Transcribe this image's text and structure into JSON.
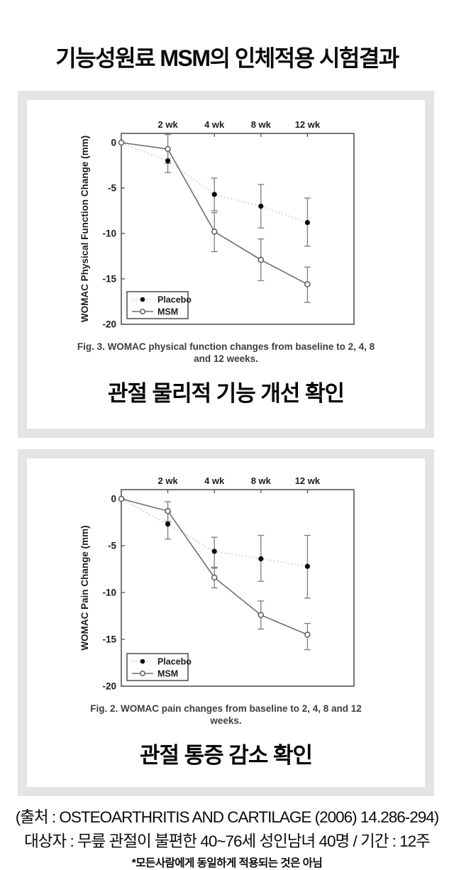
{
  "page": {
    "title": "기능성원료 MSM의 인체적용 시험결과"
  },
  "figures": [
    {
      "id": "physical-function",
      "caption_line1": "Fig. 3. WOMAC physical function changes from baseline to 2, 4, 8",
      "caption_line2": "and 12 weeks.",
      "subtitle": "관절 물리적 기능 개선 확인"
    },
    {
      "id": "pain",
      "caption_line1": "Fig. 2. WOMAC pain changes from baseline to 2, 4, 8 and 12",
      "caption_line2": "weeks.",
      "subtitle": "관절 통증 감소 확인"
    }
  ],
  "footer": {
    "source": "(출처 : OSTEOARTHRITIS AND CARTILAGE (2006) 14.286-294)",
    "subjects": "대상자 : 무릎 관절이 불편한 40~76세 성인남녀 40명 / 기간 : 12주",
    "disclaimer": "*모든사람에게 동일하게 적용되는 것은 아님"
  },
  "chart_data": [
    {
      "type": "line",
      "title": "WOMAC physical function change from baseline",
      "ylabel": "WOMAC Physical Function Change (mm)",
      "xlabel": "",
      "x_weeks": [
        0,
        2,
        4,
        8,
        12
      ],
      "x_tick_labels": [
        "2 wk",
        "4 wk",
        "8 wk",
        "12 wk"
      ],
      "y_ticks": [
        0,
        -5,
        -10,
        -15,
        -20
      ],
      "ylim": [
        1,
        -20
      ],
      "grid": false,
      "legend_position": "lower-left",
      "series": [
        {
          "name": "Placebo",
          "marker": "filled-circle",
          "line_style": "dotted",
          "values": [
            0,
            -2.0,
            -5.7,
            -7.0,
            -8.8
          ],
          "err_hi": [
            null,
            -0.7,
            -3.9,
            -4.6,
            -6.1
          ],
          "err_lo": [
            null,
            -3.3,
            -7.5,
            -9.4,
            -11.4
          ]
        },
        {
          "name": "MSM",
          "marker": "open-circle",
          "line_style": "solid",
          "values": [
            0,
            -0.7,
            -9.8,
            -12.9,
            -15.6
          ],
          "err_hi": [
            null,
            0.9,
            -7.7,
            -10.6,
            -13.7
          ],
          "err_lo": [
            null,
            -2.3,
            -12.0,
            -15.2,
            -17.6
          ]
        }
      ]
    },
    {
      "type": "line",
      "title": "WOMAC pain change from baseline",
      "ylabel": "WOMAC Pain Change (mm)",
      "xlabel": "",
      "x_weeks": [
        0,
        2,
        4,
        8,
        12
      ],
      "x_tick_labels": [
        "2 wk",
        "4 wk",
        "8 wk",
        "12 wk"
      ],
      "y_ticks": [
        0,
        -5,
        -10,
        -15,
        -20
      ],
      "ylim": [
        1,
        -20
      ],
      "grid": false,
      "legend_position": "lower-left",
      "series": [
        {
          "name": "Placebo",
          "marker": "filled-circle",
          "line_style": "dotted",
          "values": [
            0,
            -2.7,
            -5.6,
            -6.4,
            -7.2
          ],
          "err_hi": [
            null,
            -1.4,
            -4.1,
            -3.9,
            -3.9
          ],
          "err_lo": [
            null,
            -4.3,
            -7.4,
            -8.8,
            -10.6
          ]
        },
        {
          "name": "MSM",
          "marker": "open-circle",
          "line_style": "solid",
          "values": [
            0,
            -1.3,
            -8.4,
            -12.4,
            -14.5
          ],
          "err_hi": [
            null,
            -0.3,
            -7.3,
            -10.9,
            -13.3
          ],
          "err_lo": [
            null,
            -2.4,
            -9.5,
            -13.9,
            -16.1
          ]
        }
      ]
    }
  ]
}
